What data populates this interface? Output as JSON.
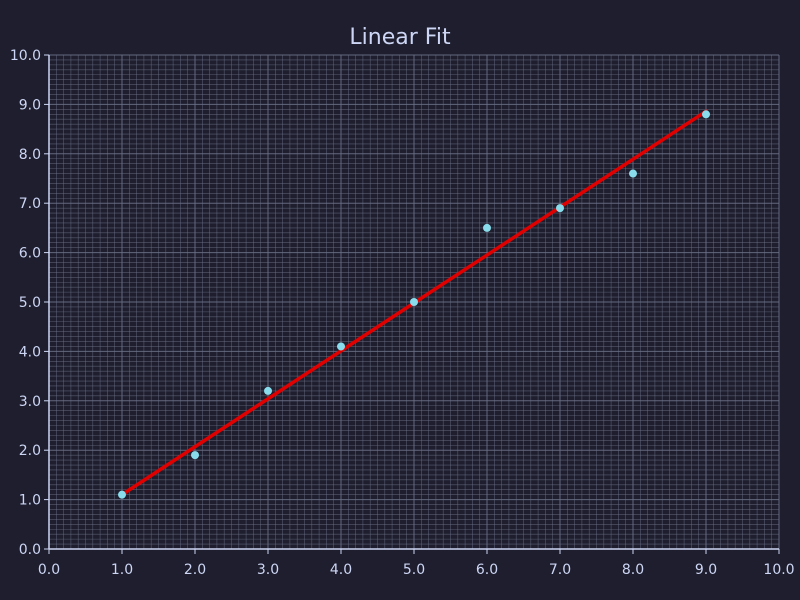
{
  "chart_data": {
    "type": "scatter",
    "title": "Linear Fit",
    "xlabel": "",
    "ylabel": "",
    "xlim": [
      0,
      10
    ],
    "ylim": [
      0,
      10
    ],
    "grid": true,
    "x_ticks": [
      "0.0",
      "1.0",
      "2.0",
      "3.0",
      "4.0",
      "5.0",
      "6.0",
      "7.0",
      "8.0",
      "9.0",
      "10.0"
    ],
    "y_ticks": [
      "0.0",
      "1.0",
      "2.0",
      "3.0",
      "4.0",
      "5.0",
      "6.0",
      "7.0",
      "8.0",
      "9.0",
      "10.0"
    ],
    "points": [
      {
        "x": 1,
        "y": 1.1
      },
      {
        "x": 2,
        "y": 1.9
      },
      {
        "x": 3,
        "y": 3.2
      },
      {
        "x": 4,
        "y": 4.1
      },
      {
        "x": 5,
        "y": 5.0
      },
      {
        "x": 6,
        "y": 6.5
      },
      {
        "x": 7,
        "y": 6.9
      },
      {
        "x": 8,
        "y": 7.6
      },
      {
        "x": 9,
        "y": 8.8
      }
    ],
    "fit_line": {
      "x": [
        1,
        9
      ],
      "y": [
        1.1,
        8.86
      ]
    },
    "colors": {
      "background": "#1e1e2e",
      "grid": "#6c7086",
      "axis": "#cdd6f4",
      "text": "#cdd6f4",
      "points": "#89dceb",
      "fit_line": "#e00000"
    }
  }
}
